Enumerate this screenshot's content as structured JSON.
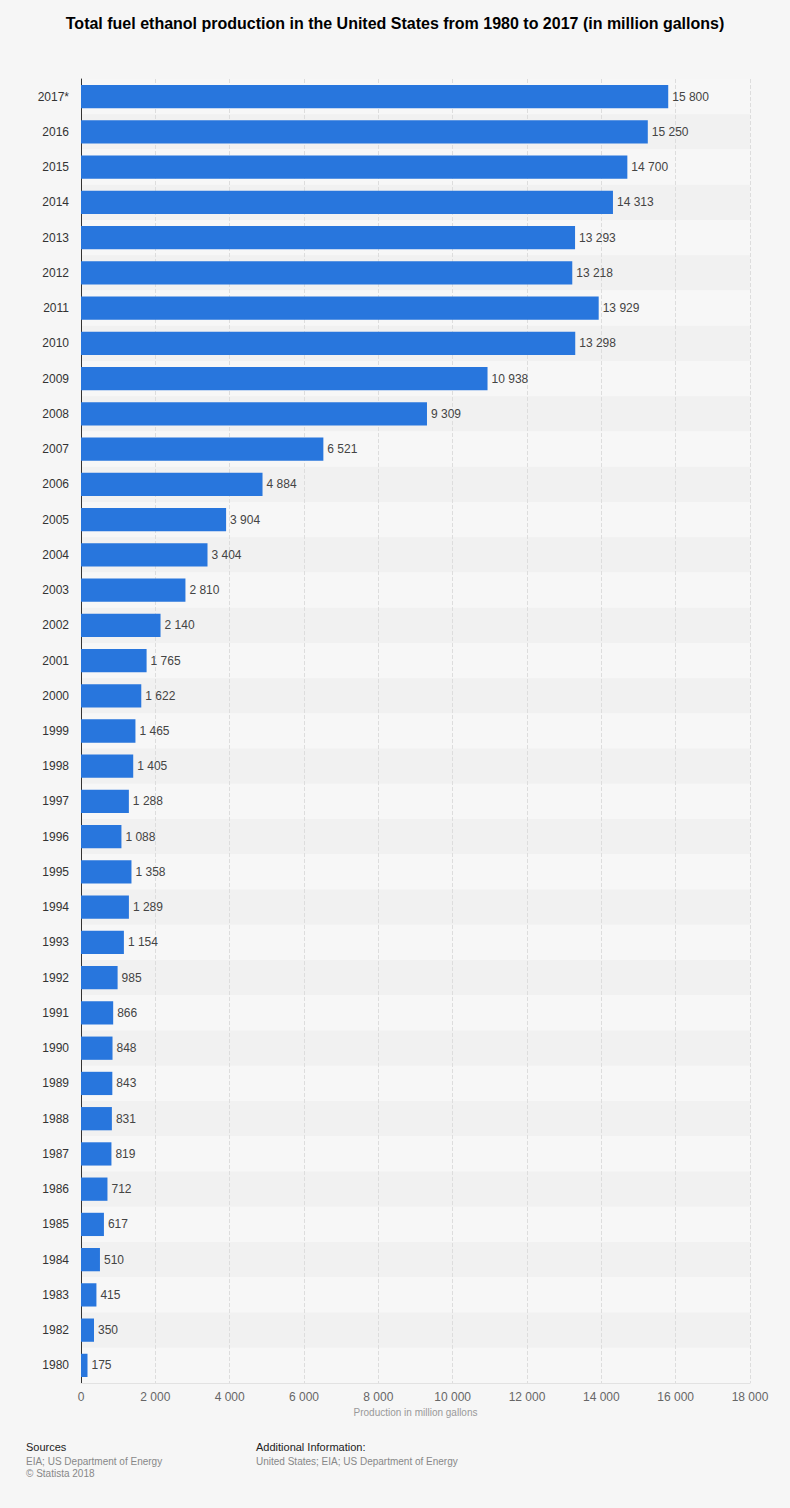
{
  "chart_data": {
    "type": "bar",
    "title": "Total fuel ethanol production in the United States from 1980 to 2017 (in million gallons)",
    "x_label": "Production in million gallons",
    "orientation": "horizontal",
    "categories": [
      "2017*",
      "2016",
      "2015",
      "2014",
      "2013",
      "2012",
      "2011",
      "2010",
      "2009",
      "2008",
      "2007",
      "2006",
      "2005",
      "2004",
      "2003",
      "2002",
      "2001",
      "2000",
      "1999",
      "1998",
      "1997",
      "1996",
      "1995",
      "1994",
      "1993",
      "1992",
      "1991",
      "1990",
      "1989",
      "1988",
      "1987",
      "1986",
      "1985",
      "1984",
      "1983",
      "1982",
      "1980"
    ],
    "values": [
      15800,
      15250,
      14700,
      14313,
      13293,
      13218,
      13929,
      13298,
      10938,
      9309,
      6521,
      4884,
      3904,
      3404,
      2810,
      2140,
      1765,
      1622,
      1465,
      1405,
      1288,
      1088,
      1358,
      1289,
      1154,
      985,
      866,
      848,
      843,
      831,
      819,
      712,
      617,
      510,
      415,
      350,
      175
    ],
    "value_labels": [
      "15 800",
      "15 250",
      "14 700",
      "14 313",
      "13 293",
      "13 218",
      "13 929",
      "13 298",
      "10 938",
      "9 309",
      "6 521",
      "4 884",
      "3 904",
      "3 404",
      "2 810",
      "2 140",
      "1 765",
      "1 622",
      "1 465",
      "1 405",
      "1 288",
      "1 088",
      "1 358",
      "1 289",
      "1 154",
      "985",
      "866",
      "848",
      "843",
      "831",
      "819",
      "712",
      "617",
      "510",
      "415",
      "350",
      "175"
    ],
    "color": "#2876dd",
    "xlim": [
      0,
      18000
    ],
    "xticks": [
      0,
      {
        "value": 2000,
        "label": "2 000"
      },
      {
        "value": 4000,
        "label": "4 000"
      },
      {
        "value": 6000,
        "label": "6 000"
      },
      {
        "value": 8000,
        "label": "8 000"
      },
      {
        "value": 10000,
        "label": "10 000"
      },
      {
        "value": 12000,
        "label": "12 000"
      },
      {
        "value": 14000,
        "label": "14 000"
      },
      {
        "value": 16000,
        "label": "16 000"
      },
      {
        "value": 18000,
        "label": "18 000"
      }
    ],
    "grid": true,
    "data_labels": true,
    "source_heading": "Sources",
    "sources": [
      "EIA; US Department of Energy",
      "© Statista 2018"
    ],
    "info_heading": "Additional Information:",
    "info": [
      "United States; EIA; US Department of Energy"
    ]
  }
}
